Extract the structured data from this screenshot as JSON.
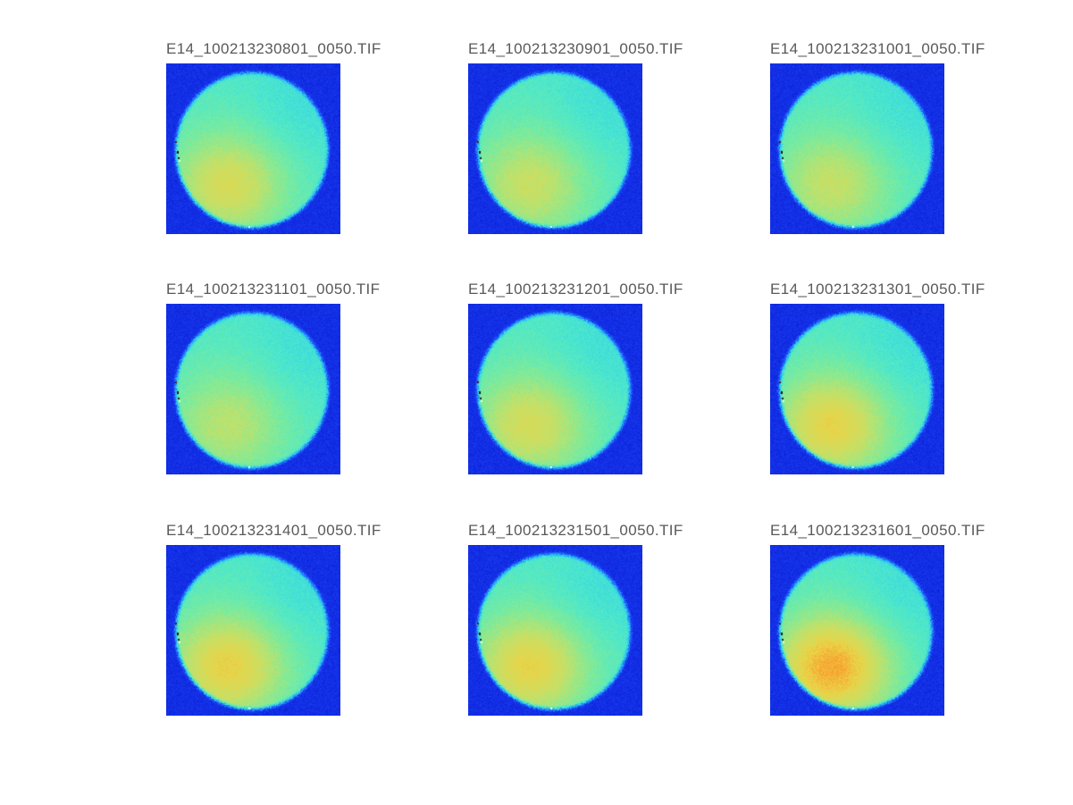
{
  "figure": {
    "background": "#ffffff",
    "title_color": "#595959",
    "panels": [
      {
        "title": "E14_100213230801_0050.TIF",
        "warm": 0.5,
        "seed": 11
      },
      {
        "title": "E14_100213230901_0050.TIF",
        "warm": 0.42,
        "seed": 22
      },
      {
        "title": "E14_100213231001_0050.TIF",
        "warm": 0.4,
        "seed": 33
      },
      {
        "title": "E14_100213231101_0050.TIF",
        "warm": 0.35,
        "seed": 44
      },
      {
        "title": "E14_100213231201_0050.TIF",
        "warm": 0.48,
        "seed": 55
      },
      {
        "title": "E14_100213231301_0050.TIF",
        "warm": 0.6,
        "seed": 66
      },
      {
        "title": "E14_100213231401_0050.TIF",
        "warm": 0.62,
        "seed": 77
      },
      {
        "title": "E14_100213231501_0050.TIF",
        "warm": 0.6,
        "seed": 88
      },
      {
        "title": "E14_100213231601_0050.TIF",
        "warm": 0.8,
        "seed": 99
      }
    ],
    "colors": {
      "background_blue": "#1937e3",
      "disc_cyan": "#4fe6cc",
      "warm_yellow": "#d9dc55"
    }
  },
  "chart_data": {
    "type": "heatmap",
    "layout": "3x3 montage of false-color image frames, titles above each panel, no axes or colorbar shown",
    "colormap": "jet",
    "panel_titles": [
      "E14_100213230801_0050.TIF",
      "E14_100213230901_0050.TIF",
      "E14_100213231001_0050.TIF",
      "E14_100213231101_0050.TIF",
      "E14_100213231201_0050.TIF",
      "E14_100213231301_0050.TIF",
      "E14_100213231401_0050.TIF",
      "E14_100213231501_0050.TIF",
      "E14_100213231601_0050.TIF"
    ],
    "description": "Each panel shows a nearly full-frame circular sample region rendered in a jet colormap on a royal-blue noisy background. The disc is cyan-turquoise with a warm green-yellow intensity region in its lower-left that grows stronger in later frames; small dark specks sit on the left rim of the disc.",
    "background_level": 0.13,
    "disc_level": 0.5,
    "warm_region_intensity": [
      0.5,
      0.42,
      0.4,
      0.35,
      0.48,
      0.6,
      0.62,
      0.6,
      0.8
    ]
  }
}
